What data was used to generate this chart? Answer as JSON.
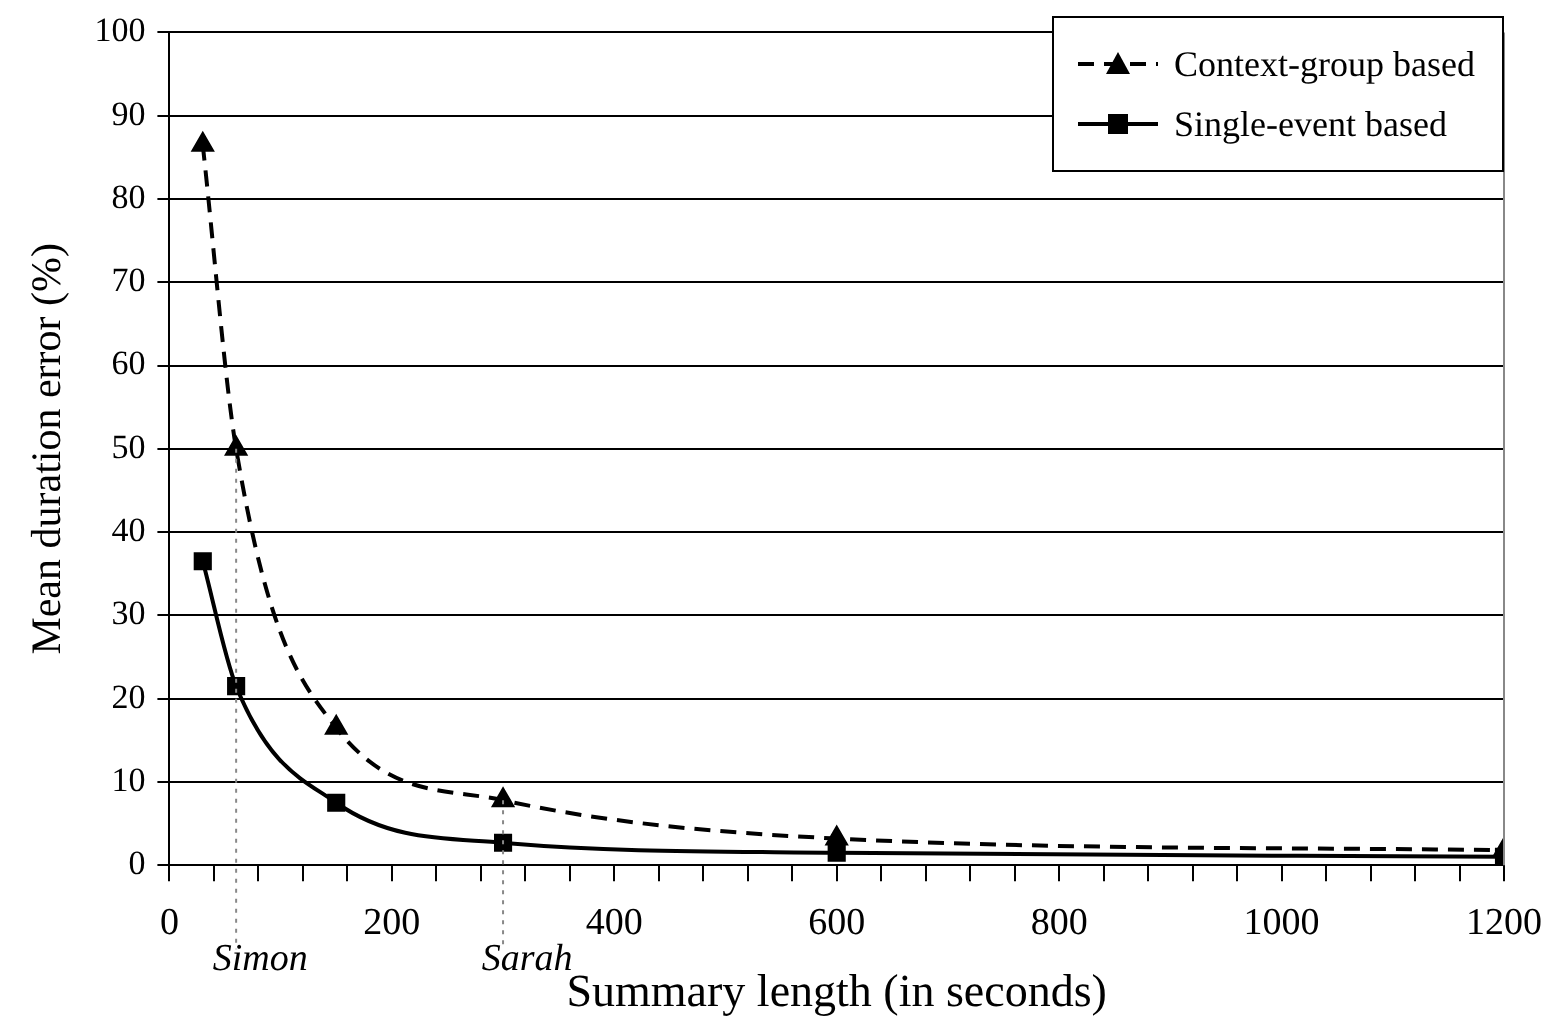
{
  "chart_data": {
    "type": "line",
    "xlabel": "Summary length (in seconds)",
    "ylabel": "Mean duration error (%)",
    "xlim": [
      0,
      1200
    ],
    "xticks": [
      0,
      {
        "value": 40,
        "label": null
      },
      {
        "value": 80,
        "label": null
      },
      {
        "value": 120,
        "label": null
      },
      {
        "value": 160,
        "label": null
      },
      200,
      {
        "value": 240,
        "label": null
      },
      {
        "value": 280,
        "label": null
      },
      {
        "value": 320,
        "label": null
      },
      {
        "value": 360,
        "label": null
      },
      400,
      {
        "value": 440,
        "label": null
      },
      {
        "value": 480,
        "label": null
      },
      {
        "value": 520,
        "label": null
      },
      {
        "value": 560,
        "label": null
      },
      600,
      {
        "value": 640,
        "label": null
      },
      {
        "value": 680,
        "label": null
      },
      {
        "value": 720,
        "label": null
      },
      {
        "value": 760,
        "label": null
      },
      800,
      {
        "value": 840,
        "label": null
      },
      {
        "value": 880,
        "label": null
      },
      {
        "value": 920,
        "label": null
      },
      {
        "value": 960,
        "label": null
      },
      1000,
      {
        "value": 1040,
        "label": null
      },
      {
        "value": 1080,
        "label": null
      },
      {
        "value": 1120,
        "label": null
      },
      {
        "value": 1160,
        "label": null
      },
      1200
    ],
    "ylim": [
      0,
      100
    ],
    "yticks": [
      0,
      10,
      20,
      30,
      40,
      50,
      60,
      70,
      80,
      90,
      100
    ],
    "grid": "y",
    "legend": "top right",
    "x": [
      30,
      60,
      150,
      300,
      600,
      1200
    ],
    "series": [
      {
        "name": "Context-group based",
        "color": "#000000",
        "marker": "triangle",
        "line_style": "dashed",
        "values": [
          86.5,
          50,
          16.5,
          7.8,
          3.2,
          1.8
        ]
      },
      {
        "name": "Single-event based",
        "color": "#000000",
        "marker": "square",
        "line_style": "solid",
        "values": [
          36.5,
          21.5,
          7.5,
          2.7,
          1.5,
          1.0
        ]
      }
    ],
    "ref_lines": [
      {
        "axis": "x",
        "value": 60,
        "label": "Simon",
        "color": "#888888",
        "line_style": "dotted"
      },
      {
        "axis": "x",
        "value": 300,
        "label": "Sarah",
        "color": "#888888",
        "line_style": "dotted"
      }
    ]
  }
}
